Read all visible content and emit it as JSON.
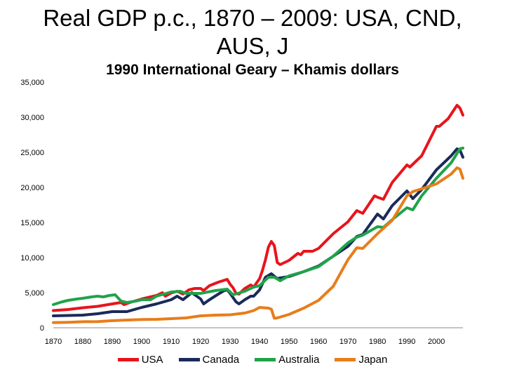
{
  "chart_data": {
    "type": "line",
    "title_lines": [
      "Real GDP p.c., 1870 – 2009: USA, CND,",
      "AUS, J"
    ],
    "subtitle": "1990 International Geary – Khamis dollars",
    "xlim": [
      1870,
      2009
    ],
    "ylim": [
      0,
      35000
    ],
    "x_ticks": [
      1870,
      1880,
      1890,
      1900,
      1910,
      1920,
      1930,
      1940,
      1950,
      1960,
      1970,
      1980,
      1990,
      2000
    ],
    "y_ticks": [
      0,
      5000,
      10000,
      15000,
      20000,
      25000,
      30000,
      35000
    ],
    "y_tick_labels": [
      "0",
      "5,000",
      "10,000",
      "15,000",
      "20,000",
      "25,000",
      "30,000",
      "35,000"
    ],
    "legend_position": "bottom",
    "series": [
      {
        "name": "USA",
        "color": "#e8141b",
        "x": [
          1870,
          1875,
          1880,
          1885,
          1890,
          1893,
          1894,
          1896,
          1900,
          1905,
          1907,
          1908,
          1910,
          1912,
          1914,
          1916,
          1918,
          1920,
          1921,
          1923,
          1926,
          1929,
          1930,
          1931,
          1932,
          1933,
          1935,
          1937,
          1938,
          1940,
          1941,
          1942,
          1943,
          1944,
          1945,
          1946,
          1947,
          1950,
          1953,
          1954,
          1955,
          1958,
          1960,
          1965,
          1970,
          1973,
          1975,
          1979,
          1980,
          1982,
          1985,
          1990,
          1991,
          1995,
          2000,
          2001,
          2004,
          2007,
          2008,
          2009
        ],
        "y": [
          2450,
          2600,
          2850,
          3050,
          3400,
          3600,
          3300,
          3600,
          4100,
          4600,
          5000,
          4500,
          4950,
          5200,
          4800,
          5400,
          5600,
          5600,
          5300,
          6000,
          6500,
          6900,
          6200,
          5700,
          4900,
          4800,
          5600,
          6100,
          5800,
          7000,
          8200,
          9700,
          11500,
          12300,
          11700,
          9300,
          9000,
          9600,
          10600,
          10400,
          10900,
          10900,
          11300,
          13400,
          15100,
          16700,
          16300,
          18800,
          18600,
          18300,
          20700,
          23200,
          22900,
          24500,
          28700,
          28700,
          29800,
          31700,
          31300,
          30300
        ]
      },
      {
        "name": "Canada",
        "color": "#1a2a5a",
        "x": [
          1870,
          1875,
          1880,
          1885,
          1890,
          1895,
          1900,
          1905,
          1910,
          1912,
          1914,
          1917,
          1920,
          1921,
          1923,
          1926,
          1928,
          1929,
          1930,
          1932,
          1933,
          1935,
          1937,
          1938,
          1940,
          1942,
          1944,
          1946,
          1947,
          1950,
          1955,
          1960,
          1965,
          1970,
          1973,
          1975,
          1980,
          1982,
          1985,
          1990,
          1992,
          1995,
          2000,
          2005,
          2007,
          2008,
          2009
        ],
        "y": [
          1700,
          1750,
          1800,
          2000,
          2300,
          2300,
          2900,
          3400,
          4000,
          4500,
          4000,
          5000,
          4100,
          3400,
          4000,
          4800,
          5300,
          5400,
          4900,
          3700,
          3400,
          4000,
          4500,
          4500,
          5400,
          7200,
          7700,
          7000,
          7100,
          7300,
          8000,
          8800,
          10200,
          11600,
          13000,
          13300,
          16200,
          15500,
          17400,
          19500,
          18400,
          19700,
          22500,
          24500,
          25500,
          25300,
          24300
        ]
      },
      {
        "name": "Australia",
        "color": "#1fa34a",
        "x": [
          1870,
          1873,
          1875,
          1878,
          1880,
          1883,
          1885,
          1887,
          1889,
          1891,
          1893,
          1895,
          1898,
          1900,
          1903,
          1905,
          1910,
          1913,
          1915,
          1920,
          1925,
          1929,
          1930,
          1931,
          1935,
          1938,
          1940,
          1943,
          1945,
          1947,
          1950,
          1955,
          1960,
          1965,
          1970,
          1973,
          1975,
          1980,
          1982,
          1985,
          1990,
          1992,
          1995,
          2000,
          2005,
          2008,
          2009
        ],
        "y": [
          3300,
          3700,
          3900,
          4100,
          4200,
          4400,
          4500,
          4400,
          4600,
          4700,
          3800,
          3600,
          3800,
          4000,
          4000,
          4500,
          5100,
          5200,
          4900,
          4900,
          5300,
          5500,
          5100,
          4700,
          5200,
          5800,
          6000,
          7200,
          7200,
          6700,
          7400,
          8000,
          8700,
          10200,
          12100,
          12900,
          13200,
          14400,
          14300,
          15400,
          17100,
          16800,
          18800,
          21300,
          23500,
          25500,
          25600
        ]
      },
      {
        "name": "Japan",
        "color": "#e87d1a",
        "x": [
          1870,
          1875,
          1880,
          1885,
          1890,
          1895,
          1900,
          1905,
          1910,
          1915,
          1920,
          1925,
          1930,
          1935,
          1938,
          1940,
          1943,
          1944,
          1945,
          1946,
          1948,
          1950,
          1955,
          1960,
          1965,
          1970,
          1973,
          1975,
          1980,
          1985,
          1990,
          1992,
          1995,
          2000,
          2005,
          2007,
          2008,
          2009
        ],
        "y": [
          740,
          780,
          860,
          880,
          1010,
          1100,
          1180,
          1200,
          1300,
          1400,
          1700,
          1800,
          1850,
          2100,
          2450,
          2900,
          2800,
          2650,
          1350,
          1400,
          1650,
          1900,
          2800,
          3900,
          5900,
          9700,
          11400,
          11300,
          13400,
          15300,
          18800,
          19400,
          19800,
          20500,
          21900,
          22800,
          22600,
          21300
        ]
      }
    ]
  }
}
